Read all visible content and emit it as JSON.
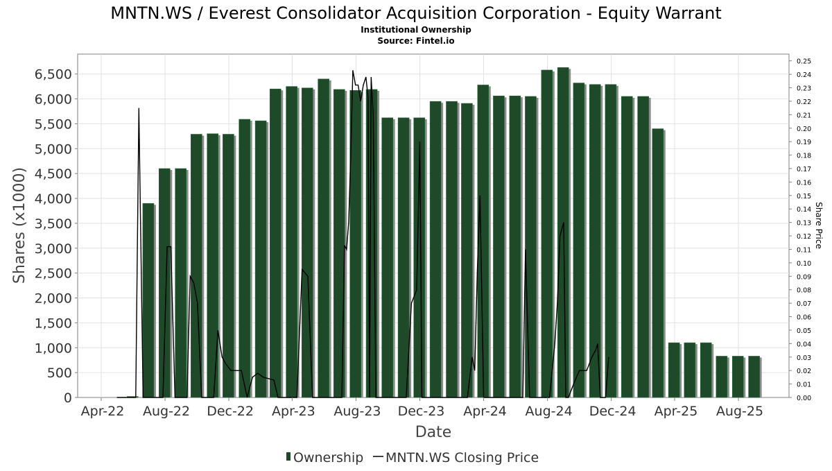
{
  "chart_data": {
    "type": "bar",
    "title": "MNTN.WS / Everest Consolidator Acquisition Corporation - Equity Warrant",
    "subtitle1": "Institutional Ownership",
    "subtitle2": "Source: Fintel.io",
    "xlabel": "Date",
    "ylabel": "Shares (x1000)",
    "y2label": "Share Price",
    "ylim": [
      0,
      6900
    ],
    "y2lim": [
      0,
      0.255
    ],
    "grid": true,
    "legend_position": "bottom-center",
    "x_ticks": [
      {
        "label": "Apr-22",
        "date": "2022-04-01"
      },
      {
        "label": "Aug-22",
        "date": "2022-08-01"
      },
      {
        "label": "Dec-22",
        "date": "2022-12-01"
      },
      {
        "label": "Apr-23",
        "date": "2023-04-01"
      },
      {
        "label": "Aug-23",
        "date": "2023-08-01"
      },
      {
        "label": "Dec-23",
        "date": "2023-12-01"
      },
      {
        "label": "Apr-24",
        "date": "2024-04-01"
      },
      {
        "label": "Aug-24",
        "date": "2024-08-01"
      },
      {
        "label": "Dec-24",
        "date": "2024-12-01"
      },
      {
        "label": "Apr-25",
        "date": "2025-04-01"
      },
      {
        "label": "Aug-25",
        "date": "2025-08-01"
      }
    ],
    "y_ticks": [
      "0",
      "500",
      "1,000",
      "1,500",
      "2,000",
      "2,500",
      "3,000",
      "3,500",
      "4,000",
      "4,500",
      "5,000",
      "5,500",
      "6,000",
      "6,500"
    ],
    "y_tick_values": [
      0,
      500,
      1000,
      1500,
      2000,
      2500,
      3000,
      3500,
      4000,
      4500,
      5000,
      5500,
      6000,
      6500
    ],
    "y2_ticks": [
      "0.00",
      "0.01",
      "0.02",
      "0.03",
      "0.04",
      "0.05",
      "0.06",
      "0.07",
      "0.08",
      "0.09",
      "0.10",
      "0.11",
      "0.12",
      "0.13",
      "0.14",
      "0.15",
      "0.16",
      "0.17",
      "0.18",
      "0.19",
      "0.20",
      "0.21",
      "0.22",
      "0.23",
      "0.24",
      "0.25"
    ],
    "series": [
      {
        "name": "Ownership",
        "color": "#1e4a2a",
        "dates": [
          "2022-05-31",
          "2022-06-30",
          "2022-07-31",
          "2022-08-31",
          "2022-09-30",
          "2022-10-31",
          "2022-11-30",
          "2022-12-31",
          "2023-01-31",
          "2023-02-28",
          "2023-03-31",
          "2023-04-30",
          "2023-05-31",
          "2023-06-30",
          "2023-07-31",
          "2023-08-31",
          "2023-09-30",
          "2023-10-31",
          "2023-11-30",
          "2023-12-31",
          "2024-01-31",
          "2024-02-29",
          "2024-03-31",
          "2024-04-30",
          "2024-05-31",
          "2024-06-30",
          "2024-07-31",
          "2024-08-31",
          "2024-09-30",
          "2024-10-31",
          "2024-11-30",
          "2024-12-31",
          "2025-01-31",
          "2025-02-28",
          "2025-03-31",
          "2025-04-30",
          "2025-05-31",
          "2025-06-30",
          "2025-07-31",
          "2025-08-31"
        ],
        "values": [
          20,
          3900,
          4600,
          4600,
          5290,
          5300,
          5290,
          5590,
          5560,
          6200,
          6250,
          6220,
          6400,
          6190,
          6170,
          6190,
          5620,
          5620,
          5620,
          5950,
          5950,
          5910,
          6280,
          6060,
          6060,
          6050,
          6580,
          6630,
          6320,
          6290,
          6290,
          6050,
          6050,
          5400,
          1100,
          1100,
          1100,
          830,
          830,
          830
        ]
      },
      {
        "name": "MNTN.WS Closing Price",
        "color": "#000000",
        "dates": [
          "2022-05-01",
          "2022-05-06",
          "2022-05-10",
          "2022-05-15",
          "2022-05-20",
          "2022-05-25",
          "2022-06-01",
          "2022-06-06",
          "2022-06-12",
          "2022-06-20",
          "2022-06-28",
          "2022-07-05",
          "2022-07-12",
          "2022-07-20",
          "2022-07-28",
          "2022-08-05",
          "2022-08-12",
          "2022-08-20",
          "2022-08-28",
          "2022-09-05",
          "2022-09-12",
          "2022-09-18",
          "2022-09-25",
          "2022-10-02",
          "2022-10-10",
          "2022-10-18",
          "2022-10-25",
          "2022-11-02",
          "2022-11-10",
          "2022-11-18",
          "2022-11-25",
          "2022-12-05",
          "2022-12-15",
          "2022-12-25",
          "2023-01-05",
          "2023-01-15",
          "2023-01-25",
          "2023-02-05",
          "2023-02-15",
          "2023-02-25",
          "2023-03-05",
          "2023-03-15",
          "2023-03-20",
          "2023-03-25",
          "2023-04-01",
          "2023-04-10",
          "2023-04-20",
          "2023-05-01",
          "2023-05-10",
          "2023-05-20",
          "2023-06-01",
          "2023-06-10",
          "2023-06-20",
          "2023-06-28",
          "2023-07-05",
          "2023-07-10",
          "2023-07-14",
          "2023-07-18",
          "2023-07-22",
          "2023-07-26",
          "2023-07-31",
          "2023-08-05",
          "2023-08-10",
          "2023-08-15",
          "2023-08-20",
          "2023-08-24",
          "2023-08-27",
          "2023-08-30",
          "2023-09-03",
          "2023-09-08",
          "2023-09-15",
          "2023-09-25",
          "2023-10-05",
          "2023-10-15",
          "2023-10-25",
          "2023-11-05",
          "2023-11-15",
          "2023-11-25",
          "2023-12-01",
          "2023-12-05",
          "2023-12-10",
          "2023-12-15",
          "2023-12-20",
          "2024-01-01",
          "2024-01-15",
          "2024-02-01",
          "2024-02-15",
          "2024-03-01",
          "2024-03-10",
          "2024-03-15",
          "2024-03-20",
          "2024-03-25",
          "2024-04-01",
          "2024-04-10",
          "2024-04-20",
          "2024-05-01",
          "2024-05-10",
          "2024-05-20",
          "2024-06-01",
          "2024-06-10",
          "2024-06-15",
          "2024-06-20",
          "2024-06-28",
          "2024-07-05",
          "2024-07-15",
          "2024-07-25",
          "2024-08-05",
          "2024-08-10",
          "2024-08-15",
          "2024-08-20",
          "2024-08-25",
          "2024-09-01",
          "2024-09-05",
          "2024-09-10",
          "2024-09-20",
          "2024-10-01",
          "2024-10-15",
          "2024-10-25",
          "2024-11-01",
          "2024-11-05",
          "2024-11-10",
          "2024-11-20",
          "2024-11-26"
        ],
        "values": [
          0.0,
          0.0,
          0.0,
          0.0,
          0.0,
          0.0,
          0.0,
          0.0,
          0.215,
          0.0,
          0.0,
          0.0,
          0.0,
          0.0,
          0.0,
          0.112,
          0.112,
          0.0,
          0.0,
          0.0,
          0.0,
          0.09,
          0.085,
          0.07,
          0.0,
          0.0,
          0.0,
          0.0,
          0.05,
          0.03,
          0.025,
          0.02,
          0.02,
          0.02,
          0.0,
          0.015,
          0.018,
          0.015,
          0.014,
          0.013,
          0.0,
          0.0,
          0.0,
          0.0,
          0.0,
          0.0,
          0.095,
          0.09,
          0.0,
          0.0,
          0.0,
          0.0,
          0.0,
          0.0,
          0.0,
          0.113,
          0.11,
          0.13,
          0.18,
          0.243,
          0.232,
          0.232,
          0.22,
          0.232,
          0.238,
          0.223,
          0.0,
          0.238,
          0.21,
          0.0,
          0.0,
          0.0,
          0.0,
          0.0,
          0.0,
          0.0,
          0.07,
          0.08,
          0.19,
          0.0,
          0.0,
          0.0,
          0.0,
          0.0,
          0.0,
          0.0,
          0.0,
          0.0,
          0.03,
          0.02,
          0.095,
          0.15,
          0.0,
          0.0,
          0.0,
          0.0,
          0.0,
          0.0,
          0.0,
          0.0,
          0.0,
          0.11,
          0.0,
          0.0,
          0.0,
          0.0,
          0.0,
          0.02,
          0.04,
          0.07,
          0.12,
          0.13,
          0.0,
          0.0,
          0.01,
          0.02,
          0.02,
          0.03,
          0.035,
          0.04,
          0.0,
          0.0,
          0.03
        ]
      }
    ]
  }
}
